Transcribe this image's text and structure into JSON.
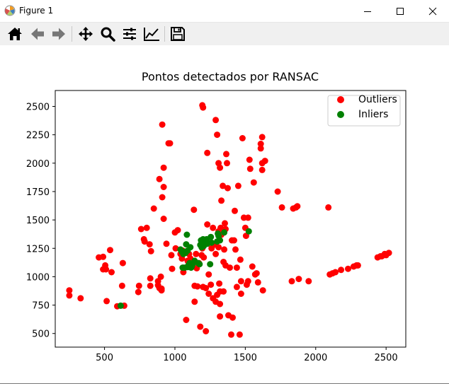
{
  "window": {
    "title": "Figure 1",
    "controls": [
      "minimize",
      "maximize",
      "close"
    ]
  },
  "toolbar": {
    "buttons": [
      {
        "name": "home",
        "icon": "home-icon"
      },
      {
        "name": "back",
        "icon": "arrow-left-icon"
      },
      {
        "name": "forward",
        "icon": "arrow-right-icon"
      },
      {
        "name": "pan",
        "icon": "move-icon"
      },
      {
        "name": "zoom",
        "icon": "zoom-icon"
      },
      {
        "name": "subplots",
        "icon": "sliders-icon"
      },
      {
        "name": "edit-axis",
        "icon": "chart-line-icon"
      },
      {
        "name": "save",
        "icon": "floppy-disk-icon"
      }
    ]
  },
  "chart_data": {
    "type": "scatter",
    "title": "Pontos detectados por RANSAC",
    "xlabel": "",
    "ylabel": "",
    "xlim": [
      150,
      2640
    ],
    "ylim": [
      380,
      2640
    ],
    "xticks": [
      500,
      1000,
      1500,
      2000,
      2500
    ],
    "yticks": [
      500,
      750,
      1000,
      1250,
      1500,
      1750,
      2000,
      2250,
      2500
    ],
    "grid": false,
    "legend": "top-right",
    "series": [
      {
        "name": "Outliers",
        "color": "#ff0000",
        "points": [
          [
            250,
            880
          ],
          [
            250,
            835
          ],
          [
            330,
            810
          ],
          [
            460,
            1170
          ],
          [
            490,
            1175
          ],
          [
            490,
            1065
          ],
          [
            505,
            1100
          ],
          [
            510,
            1065
          ],
          [
            515,
            785
          ],
          [
            540,
            1235
          ],
          [
            550,
            1040
          ],
          [
            590,
            740
          ],
          [
            625,
            920
          ],
          [
            630,
            1120
          ],
          [
            640,
            745
          ],
          [
            740,
            865
          ],
          [
            745,
            920
          ],
          [
            760,
            1420
          ],
          [
            780,
            1330
          ],
          [
            785,
            1310
          ],
          [
            800,
            1430
          ],
          [
            820,
            1285
          ],
          [
            825,
            985
          ],
          [
            825,
            920
          ],
          [
            830,
            1225
          ],
          [
            850,
            1600
          ],
          [
            890,
            1860
          ],
          [
            880,
            960
          ],
          [
            880,
            925
          ],
          [
            890,
            900
          ],
          [
            900,
            1000
          ],
          [
            905,
            895
          ],
          [
            905,
            880
          ],
          [
            910,
            2340
          ],
          [
            910,
            1700
          ],
          [
            920,
            1960
          ],
          [
            920,
            1790
          ],
          [
            920,
            1510
          ],
          [
            940,
            1290
          ],
          [
            955,
            2175
          ],
          [
            965,
            2175
          ],
          [
            975,
            1190
          ],
          [
            980,
            1070
          ],
          [
            1000,
            1390
          ],
          [
            1005,
            1250
          ],
          [
            1020,
            1410
          ],
          [
            1040,
            1200
          ],
          [
            1050,
            1160
          ],
          [
            1055,
            1230
          ],
          [
            1060,
            1080
          ],
          [
            1060,
            1040
          ],
          [
            1080,
            620
          ],
          [
            1090,
            1140
          ],
          [
            1100,
            1200
          ],
          [
            1110,
            1160
          ],
          [
            1125,
            1120
          ],
          [
            1135,
            1590
          ],
          [
            1140,
            920
          ],
          [
            1140,
            780
          ],
          [
            1150,
            1200
          ],
          [
            1155,
            1075
          ],
          [
            1160,
            915
          ],
          [
            1170,
            1120
          ],
          [
            1180,
            560
          ],
          [
            1190,
            1190
          ],
          [
            1195,
            1250
          ],
          [
            1195,
            2510
          ],
          [
            1200,
            2490
          ],
          [
            1200,
            910
          ],
          [
            1205,
            1170
          ],
          [
            1210,
            1310
          ],
          [
            1220,
            900
          ],
          [
            1220,
            520
          ],
          [
            1230,
            2090
          ],
          [
            1230,
            1460
          ],
          [
            1240,
            850
          ],
          [
            1240,
            1020
          ],
          [
            1255,
            930
          ],
          [
            1260,
            1250
          ],
          [
            1270,
            810
          ],
          [
            1270,
            1430
          ],
          [
            1275,
            1280
          ],
          [
            1290,
            780
          ],
          [
            1290,
            1200
          ],
          [
            1290,
            2380
          ],
          [
            1300,
            2250
          ],
          [
            1300,
            840
          ],
          [
            1310,
            1400
          ],
          [
            1310,
            1260
          ],
          [
            1310,
            2000
          ],
          [
            1320,
            1960
          ],
          [
            1315,
            940
          ],
          [
            1320,
            870
          ],
          [
            1320,
            760
          ],
          [
            1320,
            650
          ],
          [
            1325,
            1430
          ],
          [
            1330,
            1670
          ],
          [
            1330,
            1370
          ],
          [
            1340,
            1800
          ],
          [
            1345,
            1130
          ],
          [
            1345,
            870
          ],
          [
            1350,
            1240
          ],
          [
            1355,
            1470
          ],
          [
            1360,
            1420
          ],
          [
            1360,
            1100
          ],
          [
            1365,
            2080
          ],
          [
            1370,
            2000
          ],
          [
            1375,
            1780
          ],
          [
            1380,
            660
          ],
          [
            1390,
            1080
          ],
          [
            1400,
            490
          ],
          [
            1405,
            1320
          ],
          [
            1410,
            640
          ],
          [
            1420,
            1320
          ],
          [
            1425,
            1580
          ],
          [
            1430,
            1240
          ],
          [
            1440,
            1080
          ],
          [
            1440,
            910
          ],
          [
            1450,
            1800
          ],
          [
            1460,
            490
          ],
          [
            1465,
            1150
          ],
          [
            1470,
            960
          ],
          [
            1470,
            850
          ],
          [
            1480,
            2220
          ],
          [
            1490,
            1520
          ],
          [
            1500,
            1430
          ],
          [
            1505,
            1360
          ],
          [
            1510,
            930
          ],
          [
            1520,
            1520
          ],
          [
            1520,
            960
          ],
          [
            1530,
            2030
          ],
          [
            1535,
            1950
          ],
          [
            1550,
            1090
          ],
          [
            1560,
            1830
          ],
          [
            1570,
            1020
          ],
          [
            1580,
            1030
          ],
          [
            1590,
            950
          ],
          [
            1610,
            2170
          ],
          [
            1610,
            2130
          ],
          [
            1620,
            2230
          ],
          [
            1620,
            2000
          ],
          [
            1620,
            1940
          ],
          [
            1625,
            880
          ],
          [
            1640,
            2020
          ],
          [
            1730,
            1750
          ],
          [
            1760,
            1610
          ],
          [
            1830,
            960
          ],
          [
            1840,
            1600
          ],
          [
            1860,
            1610
          ],
          [
            1870,
            1620
          ],
          [
            1880,
            980
          ],
          [
            1950,
            960
          ],
          [
            2090,
            1610
          ],
          [
            2100,
            1020
          ],
          [
            2120,
            1030
          ],
          [
            2140,
            1040
          ],
          [
            2180,
            1060
          ],
          [
            2230,
            1070
          ],
          [
            2270,
            1090
          ],
          [
            2290,
            1100
          ],
          [
            2300,
            1100
          ],
          [
            2440,
            1170
          ],
          [
            2460,
            1180
          ],
          [
            2470,
            1180
          ],
          [
            2490,
            1200
          ],
          [
            2500,
            1190
          ],
          [
            2520,
            1210
          ]
        ]
      },
      {
        "name": "Inliers",
        "color": "#008000",
        "points": [
          [
            615,
            745
          ],
          [
            1040,
            1240
          ],
          [
            1050,
            1220
          ],
          [
            1055,
            1080
          ],
          [
            1060,
            1200
          ],
          [
            1065,
            1220
          ],
          [
            1070,
            1080
          ],
          [
            1075,
            1210
          ],
          [
            1080,
            1285
          ],
          [
            1085,
            1370
          ],
          [
            1090,
            1085
          ],
          [
            1090,
            1230
          ],
          [
            1095,
            1100
          ],
          [
            1105,
            1120
          ],
          [
            1110,
            1260
          ],
          [
            1110,
            1095
          ],
          [
            1115,
            1080
          ],
          [
            1120,
            1090
          ],
          [
            1125,
            1110
          ],
          [
            1140,
            1140
          ],
          [
            1165,
            1120
          ],
          [
            1175,
            1110
          ],
          [
            1180,
            1280
          ],
          [
            1185,
            1320
          ],
          [
            1190,
            1260
          ],
          [
            1200,
            1330
          ],
          [
            1205,
            1270
          ],
          [
            1215,
            1300
          ],
          [
            1225,
            1330
          ],
          [
            1230,
            1290
          ],
          [
            1250,
            1110
          ],
          [
            1255,
            1350
          ],
          [
            1260,
            1300
          ],
          [
            1300,
            1310
          ],
          [
            1305,
            1380
          ],
          [
            1310,
            1360
          ],
          [
            1320,
            1320
          ],
          [
            1350,
            1390
          ],
          [
            1525,
            1400
          ]
        ]
      }
    ]
  }
}
